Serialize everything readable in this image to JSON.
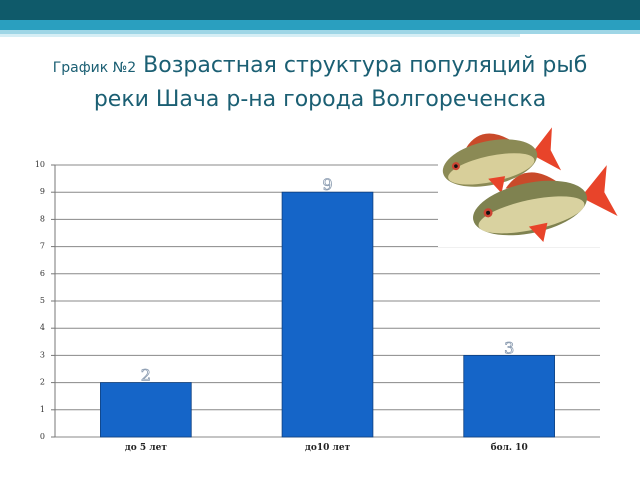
{
  "chart_data": {
    "type": "bar",
    "title_prefix": "График №2",
    "title": "Возрастная структура популяций рыб реки Шача р-на города Волгореченска",
    "categories": [
      "до 5 лет",
      "до10 лет",
      "бол. 10"
    ],
    "values": [
      2,
      9,
      3
    ],
    "color": "#1565c8",
    "ylim": [
      0,
      10
    ],
    "yticks": [
      0,
      1,
      2,
      3,
      4,
      5,
      6,
      7,
      8,
      9,
      10
    ],
    "grid": true
  }
}
